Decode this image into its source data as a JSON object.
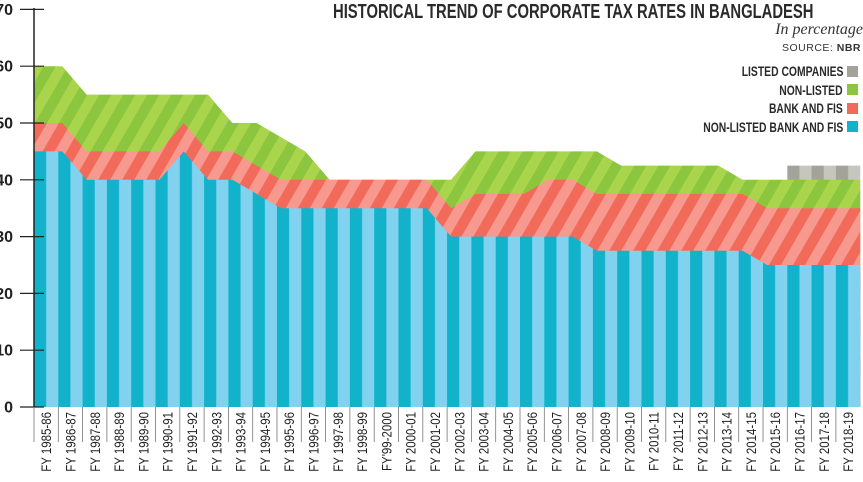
{
  "chart_data": {
    "type": "area",
    "title": "HISTORICAL TREND OF CORPORATE TAX RATES IN BANGLADESH",
    "subtitle": "In percentage",
    "source_label": "SOURCE:",
    "source": "NBR",
    "xlabel": "",
    "ylabel": "",
    "ylim": [
      0,
      70
    ],
    "yticks": [
      0,
      10,
      20,
      30,
      40,
      50,
      60,
      70
    ],
    "grid": false,
    "legend_placement": "top-right",
    "categories": [
      "FY 1985-86",
      "FY 1986-87",
      "FY 1987-88",
      "FY 1988-89",
      "FY 1989-90",
      "FY 1990-91",
      "FY 1991-92",
      "FY 1992-93",
      "FY 1993-94",
      "FY 1994-95",
      "FY 1995-96",
      "FY 1996-97",
      "FY 1997-98",
      "FY 1998-99",
      "FY'99-2000",
      "FY 2000-01",
      "FY 2001-02",
      "FY 2002-03",
      "FY 2003-04",
      "FY 2004-05",
      "FY 2005-06",
      "FY 2006-07",
      "FY 2007-08",
      "FY 2008-09",
      "FY 2009-10",
      "FY 2010-11",
      "FY 2011-12",
      "FY 2012-13",
      "FY 2013-14",
      "FY 2014-15",
      "FY 2015-16",
      "FY 2016-17",
      "FY 2017-18",
      "FY 2018-19"
    ],
    "series": [
      {
        "name": "LISTED COMPANIES",
        "color": "#a3a39b",
        "color_light": "#c6c6be",
        "values": [
          null,
          null,
          null,
          null,
          null,
          null,
          null,
          null,
          null,
          null,
          null,
          null,
          null,
          null,
          null,
          null,
          null,
          null,
          null,
          null,
          null,
          null,
          null,
          null,
          null,
          null,
          null,
          null,
          null,
          null,
          null,
          42.5,
          42.5,
          42.5
        ]
      },
      {
        "name": "NON-LISTED",
        "color": "#8cc63f",
        "color_light": "#a9d54c",
        "values": [
          60,
          60,
          55,
          55,
          55,
          55,
          55,
          55,
          50,
          50,
          47.5,
          45,
          40,
          40,
          40,
          40,
          40,
          40,
          45,
          45,
          45,
          45,
          45,
          45,
          42.5,
          42.5,
          42.5,
          42.5,
          42.5,
          40,
          40,
          40,
          40,
          40
        ]
      },
      {
        "name": "BANK AND FIS",
        "color": "#f26b5a",
        "color_light": "#f7998f",
        "values": [
          50,
          50,
          45,
          45,
          45,
          45,
          50,
          45,
          45,
          42.5,
          40,
          40,
          40,
          40,
          40,
          40,
          40,
          35,
          37.5,
          37.5,
          37.5,
          40,
          40,
          37.5,
          37.5,
          37.5,
          37.5,
          37.5,
          37.5,
          37.5,
          35,
          35,
          35,
          35
        ]
      },
      {
        "name": "NON-LISTED BANK AND FIS",
        "color": "#12b2cb",
        "color_light": "#80d2ef",
        "values": [
          45,
          45,
          40,
          40,
          40,
          40,
          45,
          40,
          40,
          37.5,
          35,
          35,
          35,
          35,
          35,
          35,
          35,
          30,
          30,
          30,
          30,
          30,
          30,
          27.5,
          27.5,
          27.5,
          27.5,
          27.5,
          27.5,
          27.5,
          25,
          25,
          25,
          25
        ]
      }
    ]
  }
}
